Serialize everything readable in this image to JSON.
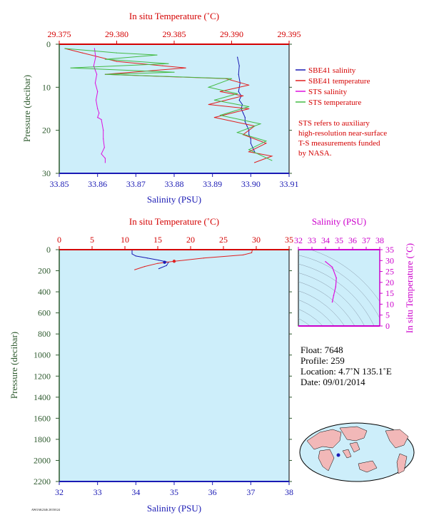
{
  "colors": {
    "plot_bg": "#cdeefa",
    "sbe_salinity": "#1a1ab4",
    "sbe_temperature": "#e02020",
    "sts_salinity": "#dd11dd",
    "sts_temperature": "#44bb44",
    "red_axis": "#d40000",
    "blue_axis": "#1a1ab4",
    "green_axis": "#2e5a2e",
    "magenta_axis": "#cc00cc"
  },
  "chart_data": [
    {
      "type": "line",
      "x_top_label": "In situ Temperature (˚C)",
      "x_top_ticks": [
        "29.375",
        "29.380",
        "29.385",
        "29.390",
        "29.395"
      ],
      "x_top_lim": [
        29.375,
        29.395
      ],
      "x_bottom_label": "Salinity (PSU)",
      "x_bottom_ticks": [
        "33.85",
        "33.86",
        "33.87",
        "33.88",
        "33.89",
        "33.90",
        "33.91"
      ],
      "x_bottom_lim": [
        33.85,
        33.91
      ],
      "ylabel": "Pressure (decibar)",
      "y_ticks": [
        "0",
        "10",
        "20",
        "30"
      ],
      "ylim": [
        0,
        30
      ],
      "legend_placement": "right",
      "legend": [
        {
          "name": "SBE41 salinity",
          "color": "#1a1ab4"
        },
        {
          "name": "SBE41 temperature",
          "color": "#e02020"
        },
        {
          "name": "STS salinity",
          "color": "#dd11dd"
        },
        {
          "name": "STS temperature",
          "color": "#44bb44"
        }
      ],
      "note": [
        "STS refers to auxiliary",
        "high-resolution near-surface",
        "T-S measurements funded",
        "by NASA."
      ],
      "series": [
        {
          "name": "SBE41 salinity",
          "axis": "salinity",
          "x": [
            33.8965,
            33.897,
            33.8968,
            33.8972,
            33.8968,
            33.8975,
            33.897,
            33.8978,
            33.8975,
            33.898,
            33.8985,
            33.8985,
            33.899,
            33.8995,
            33.8995,
            33.9,
            33.9,
            33.9005,
            33.901
          ],
          "y": [
            3,
            5,
            7,
            9,
            11,
            12,
            13,
            14,
            15,
            16,
            17,
            18,
            19,
            20,
            21,
            22,
            23,
            24,
            25
          ]
        },
        {
          "name": "SBE41 temperature",
          "axis": "temperature",
          "x": [
            29.3755,
            29.377,
            29.38,
            29.384,
            29.386,
            29.379,
            29.3895,
            29.3915,
            29.389,
            29.391,
            29.388,
            29.3915,
            29.3885,
            29.392,
            29.391,
            29.393,
            29.3915,
            29.3935,
            29.392
          ],
          "y": [
            1,
            2,
            4,
            5,
            5.5,
            7,
            8,
            9.5,
            11,
            12,
            14,
            15,
            17,
            19,
            21,
            23,
            25,
            26,
            27.5
          ]
        },
        {
          "name": "STS salinity",
          "axis": "salinity",
          "x": [
            33.8592,
            33.8595,
            33.859,
            33.8594,
            33.8598,
            33.8594,
            33.86,
            33.8596,
            33.86,
            33.8604,
            33.86,
            33.861,
            33.8615,
            33.8615,
            33.8618,
            33.861,
            33.862,
            33.862
          ],
          "y": [
            1,
            3,
            5,
            6,
            7,
            9,
            11,
            13,
            15,
            16,
            17,
            17.5,
            20,
            22,
            24,
            25.5,
            26.5,
            27.5
          ]
        },
        {
          "name": "STS temperature",
          "axis": "temperature",
          "x": [
            29.3755,
            29.38,
            29.3835,
            29.379,
            29.3845,
            29.376,
            29.385,
            29.379,
            29.39,
            29.388,
            29.3905,
            29.3885,
            29.3915,
            29.389,
            29.3925,
            29.3905,
            29.393,
            29.3915,
            29.3935
          ],
          "y": [
            1,
            2,
            2.5,
            3.5,
            4.5,
            5.5,
            6.5,
            7,
            8,
            10,
            11.5,
            13,
            14.5,
            16.5,
            18.5,
            20.5,
            22.5,
            24.5,
            27
          ]
        }
      ]
    },
    {
      "type": "line",
      "x_top_label": "In situ Temperature (˚C)",
      "x_top_ticks": [
        "0",
        "5",
        "10",
        "15",
        "20",
        "25",
        "30",
        "35"
      ],
      "x_top_lim": [
        0,
        35
      ],
      "x_bottom_label": "Salinity (PSU)",
      "x_bottom_ticks": [
        "32",
        "33",
        "34",
        "35",
        "36",
        "37",
        "38"
      ],
      "x_bottom_lim": [
        32,
        38
      ],
      "ylabel": "Pressure (decibar)",
      "y_ticks": [
        "0",
        "200",
        "400",
        "600",
        "800",
        "1000",
        "1200",
        "1400",
        "1600",
        "1800",
        "2000",
        "2200"
      ],
      "ylim": [
        0,
        2200
      ],
      "series": [
        {
          "name": "salinity",
          "axis": "salinity",
          "x": [
            33.9,
            33.9,
            34.0,
            34.3,
            34.6,
            34.85,
            34.8,
            34.6
          ],
          "y": [
            0,
            40,
            60,
            80,
            100,
            120,
            150,
            180
          ]
        },
        {
          "name": "temperature",
          "axis": "temperature",
          "x": [
            29.4,
            29.3,
            28.0,
            22.0,
            17.5,
            15.0,
            13.0,
            11.5
          ],
          "y": [
            0,
            30,
            50,
            80,
            110,
            130,
            160,
            190
          ]
        }
      ]
    },
    {
      "type": "scatter",
      "x_top_label": "Salinity (PSU)",
      "x_top_ticks": [
        "32",
        "33",
        "34",
        "35",
        "36",
        "37",
        "38"
      ],
      "x_top_lim": [
        32,
        38
      ],
      "ylabel": "In situ Temperature (˚C)",
      "y_ticks": [
        "0",
        "5",
        "10",
        "15",
        "20",
        "25",
        "30",
        "35"
      ],
      "ylim": [
        0,
        35
      ],
      "series": [
        {
          "name": "T-S",
          "x": [
            34.0,
            34.5,
            34.8,
            34.75,
            34.6,
            34.5
          ],
          "y": [
            29.5,
            27,
            22,
            18,
            14,
            11
          ]
        }
      ]
    }
  ],
  "info": {
    "float": "Float:  7648",
    "profile": "Profile:  259",
    "location": "Location:  4.7˚N  135.1˚E",
    "date": "Date:  09/01/2014"
  },
  "footer_code": "AWOAK2346 20150124"
}
